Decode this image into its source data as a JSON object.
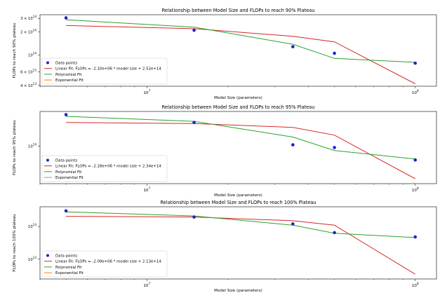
{
  "chart_data": [
    {
      "type": "scatter",
      "title": "Relationship between Model Size and FLOPs to reach 90% Plateau",
      "xlabel": "Model Size (parameters)",
      "ylabel": "FLOPs to reach 90% plateau",
      "x_scale": "log",
      "y_scale": "log",
      "xlim": [
        4000000,
        120000000
      ],
      "ylim": [
        39000000000000,
        335000000000000
      ],
      "x_ticks": [
        {
          "value": 10000000,
          "label": "10^7"
        },
        {
          "value": 100000000,
          "label": "10^8"
        }
      ],
      "y_ticks": [
        {
          "value": 40000000000000,
          "label": "4 × 10^13"
        },
        {
          "value": 60000000000000,
          "label": "6 × 10^13"
        },
        {
          "value": 100000000000000,
          "label": "10^14"
        },
        {
          "value": 200000000000000,
          "label": "2 × 10^14"
        },
        {
          "value": 300000000000000,
          "label": "3 × 10^14"
        }
      ],
      "legend_position": "lower-left",
      "points": {
        "name": "Data points",
        "color": "#1f1fd0",
        "x": [
          5000000,
          15000000,
          35000000,
          50000000,
          100000000
        ],
        "y": [
          305000000000000,
          210000000000000,
          128000000000000,
          105000000000000,
          78000000000000
        ]
      },
      "series": [
        {
          "name": "Linear Fit: FLOPs = -2.10e+06 * model size + 2.52e+14",
          "color": "#d62728",
          "x": [
            5000000,
            15000000,
            35000000,
            50000000,
            100000000
          ],
          "y": [
            242000000000000,
            220000000000000,
            175000000000000,
            148000000000000,
            42000000000000
          ]
        },
        {
          "name": "Polynomial Fit",
          "color": "#2ca02c",
          "x": [
            5000000,
            15000000,
            35000000,
            50000000,
            100000000
          ],
          "y": [
            288000000000000,
            230000000000000,
            138000000000000,
            90000000000000,
            80000000000000
          ]
        },
        {
          "name": "Exponential Fit",
          "color": "#ff7f0e",
          "x": [],
          "y": []
        }
      ]
    },
    {
      "type": "scatter",
      "title": "Relationship between Model Size and FLOPs to reach 95% Plateau",
      "xlabel": "Model Size (parameters)",
      "ylabel": "FLOPs to reach 95% plateau",
      "x_scale": "log",
      "y_scale": "log",
      "xlim": [
        4000000,
        120000000
      ],
      "ylim": [
        25000000000000,
        360000000000000
      ],
      "x_ticks": [
        {
          "value": 10000000,
          "label": "10^7"
        },
        {
          "value": 100000000,
          "label": "10^8"
        }
      ],
      "y_ticks": [
        {
          "value": 100000000000000,
          "label": "10^14"
        }
      ],
      "legend_position": "lower-left",
      "points": {
        "name": "Data points",
        "color": "#1f1fd0",
        "x": [
          5000000,
          15000000,
          35000000,
          50000000,
          100000000
        ],
        "y": [
          320000000000000,
          240000000000000,
          105000000000000,
          95000000000000,
          60000000000000
        ]
      },
      "series": [
        {
          "name": "Linear Fit: FLOPs = -2.18e+06 * model size + 2.34e+14",
          "color": "#d62728",
          "x": [
            5000000,
            15000000,
            35000000,
            50000000,
            100000000
          ],
          "y": [
            240000000000000,
            230000000000000,
            200000000000000,
            150000000000000,
            30000000000000
          ]
        },
        {
          "name": "Polynomial Fit",
          "color": "#2ca02c",
          "x": [
            5000000,
            15000000,
            35000000,
            50000000,
            100000000
          ],
          "y": [
            300000000000000,
            250000000000000,
            140000000000000,
            85000000000000,
            62000000000000
          ]
        },
        {
          "name": "Exponential Fit",
          "color": "#ff7f0e",
          "x": [],
          "y": []
        }
      ]
    },
    {
      "type": "scatter",
      "title": "Relationship between Model Size and FLOPs to reach 100% Plateau",
      "xlabel": "Model Size (parameters)",
      "ylabel": "FLOPs to reach 100% plateau",
      "x_scale": "log",
      "y_scale": "log",
      "xlim": [
        4000000,
        120000000
      ],
      "ylim": [
        2500000000000,
        400000000000000
      ],
      "x_ticks": [
        {
          "value": 10000000,
          "label": "10^7"
        },
        {
          "value": 100000000,
          "label": "10^8"
        }
      ],
      "y_ticks": [
        {
          "value": 10000000000000,
          "label": "10^13"
        },
        {
          "value": 100000000000000,
          "label": "10^14"
        }
      ],
      "legend_position": "lower-left",
      "points": {
        "name": "Data points",
        "color": "#1f1fd0",
        "x": [
          5000000,
          15000000,
          35000000,
          50000000,
          100000000
        ],
        "y": [
          300000000000000,
          195000000000000,
          120000000000000,
          65000000000000,
          48000000000000
        ]
      },
      "series": [
        {
          "name": "Linear Fit: FLOPs = -2.09e+06 * model size + 2.13e+14",
          "color": "#d62728",
          "x": [
            5000000,
            15000000,
            35000000,
            50000000,
            100000000
          ],
          "y": [
            205000000000000,
            195000000000000,
            150000000000000,
            110000000000000,
            3500000000000
          ]
        },
        {
          "name": "Polynomial Fit",
          "color": "#2ca02c",
          "x": [
            5000000,
            15000000,
            35000000,
            50000000,
            100000000
          ],
          "y": [
            280000000000000,
            210000000000000,
            110000000000000,
            62000000000000,
            46000000000000
          ]
        },
        {
          "name": "Exponential Fit",
          "color": "#ff7f0e",
          "x": [],
          "y": []
        }
      ]
    }
  ]
}
